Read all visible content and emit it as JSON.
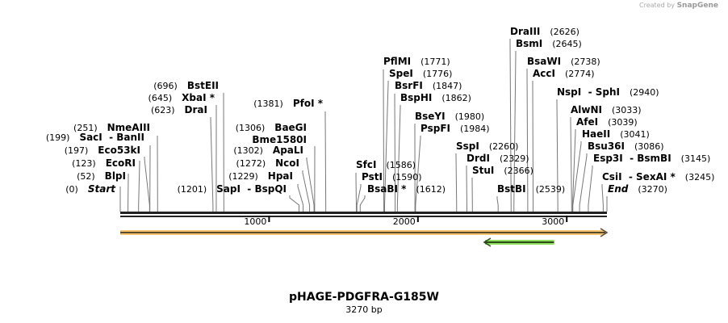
{
  "credit": {
    "prefix": "Created by",
    "brand": "SnapGene"
  },
  "title": "pHAGE-PDGFRA-G185W",
  "length_label": "3270 bp",
  "length_bp": 3270,
  "ticks": [
    {
      "label": "1000",
      "pos": 1000
    },
    {
      "label": "2000",
      "pos": 2000
    },
    {
      "label": "3000",
      "pos": 3000
    }
  ],
  "colors": {
    "feature_main": "#f5c46e",
    "feature_green": "#8ee05a",
    "backbone": "#222222"
  },
  "features": [
    {
      "start": 0,
      "end": 3270,
      "direction": "forward"
    },
    {
      "start": 2440,
      "end": 2915,
      "direction": "reverse"
    }
  ],
  "sites": [
    {
      "name": "Start",
      "pos_label": "(0)",
      "pos": 0,
      "italic": true
    },
    {
      "name": "BlpI",
      "pos_label": "(52)",
      "pos": 52
    },
    {
      "name": "EcoRI",
      "pos_label": "(123)",
      "pos": 123
    },
    {
      "name": "Eco53kI",
      "pos_label": "(197)",
      "pos": 197
    },
    {
      "name": "SacI  - BanII",
      "pos_label": "(199)",
      "pos": 199
    },
    {
      "name": "NmeAIII",
      "pos_label": "(251)",
      "pos": 251
    },
    {
      "name": "DraI",
      "pos_label": "(623)",
      "pos": 623
    },
    {
      "name": "XbaI *",
      "pos_label": "(645)",
      "pos": 645
    },
    {
      "name": "BstEII",
      "pos_label": "(696)",
      "pos": 696
    },
    {
      "name": "SapI  - BspQI",
      "pos_label": "(1201)",
      "pos": 1201
    },
    {
      "name": "HpaI",
      "pos_label": "(1229)",
      "pos": 1229
    },
    {
      "name": "NcoI",
      "pos_label": "(1272)",
      "pos": 1272
    },
    {
      "name": "ApaLI",
      "pos_label": "(1302)",
      "pos": 1302
    },
    {
      "name": "Bme1580I",
      "pos_label": "",
      "pos": 1306
    },
    {
      "name": "BaeGI",
      "pos_label": "(1306)",
      "pos": 1306
    },
    {
      "name": "PfoI *",
      "pos_label": "(1381)",
      "pos": 1381
    },
    {
      "name": "SfcI",
      "pos_label": "(1586)",
      "pos": 1586
    },
    {
      "name": "PstI",
      "pos_label": "(1590)",
      "pos": 1590
    },
    {
      "name": "BsaBI *",
      "pos_label": "(1612)",
      "pos": 1612
    },
    {
      "name": "PflMI",
      "pos_label": "(1771)",
      "pos": 1771
    },
    {
      "name": "SpeI",
      "pos_label": "(1776)",
      "pos": 1776
    },
    {
      "name": "BsrFI",
      "pos_label": "(1847)",
      "pos": 1847
    },
    {
      "name": "BspHI",
      "pos_label": "(1862)",
      "pos": 1862
    },
    {
      "name": "BseYI",
      "pos_label": "(1980)",
      "pos": 1980
    },
    {
      "name": "PspFI",
      "pos_label": "(1984)",
      "pos": 1984
    },
    {
      "name": "SspI",
      "pos_label": "(2260)",
      "pos": 2260
    },
    {
      "name": "DrdI",
      "pos_label": "(2329)",
      "pos": 2329
    },
    {
      "name": "StuI",
      "pos_label": "(2366)",
      "pos": 2366
    },
    {
      "name": "BstBI",
      "pos_label": "(2539)",
      "pos": 2539
    },
    {
      "name": "DraIII",
      "pos_label": "(2626)",
      "pos": 2626
    },
    {
      "name": "BsmI",
      "pos_label": "(2645)",
      "pos": 2645
    },
    {
      "name": "BsaWI",
      "pos_label": "(2738)",
      "pos": 2738
    },
    {
      "name": "AccI",
      "pos_label": "(2774)",
      "pos": 2774
    },
    {
      "name": "NspI  - SphI",
      "pos_label": "(2940)",
      "pos": 2940
    },
    {
      "name": "AlwNI",
      "pos_label": "(3033)",
      "pos": 3033
    },
    {
      "name": "AfeI",
      "pos_label": "(3039)",
      "pos": 3039
    },
    {
      "name": "HaeII",
      "pos_label": "(3041)",
      "pos": 3041
    },
    {
      "name": "Bsu36I",
      "pos_label": "(3086)",
      "pos": 3086
    },
    {
      "name": "Esp3I  - BsmBI",
      "pos_label": "(3145)",
      "pos": 3145
    },
    {
      "name": "CsiI  - SexAI *",
      "pos_label": "(3245)",
      "pos": 3245
    },
    {
      "name": "End",
      "pos_label": "(3270)",
      "pos": 3270,
      "italic": true
    }
  ]
}
